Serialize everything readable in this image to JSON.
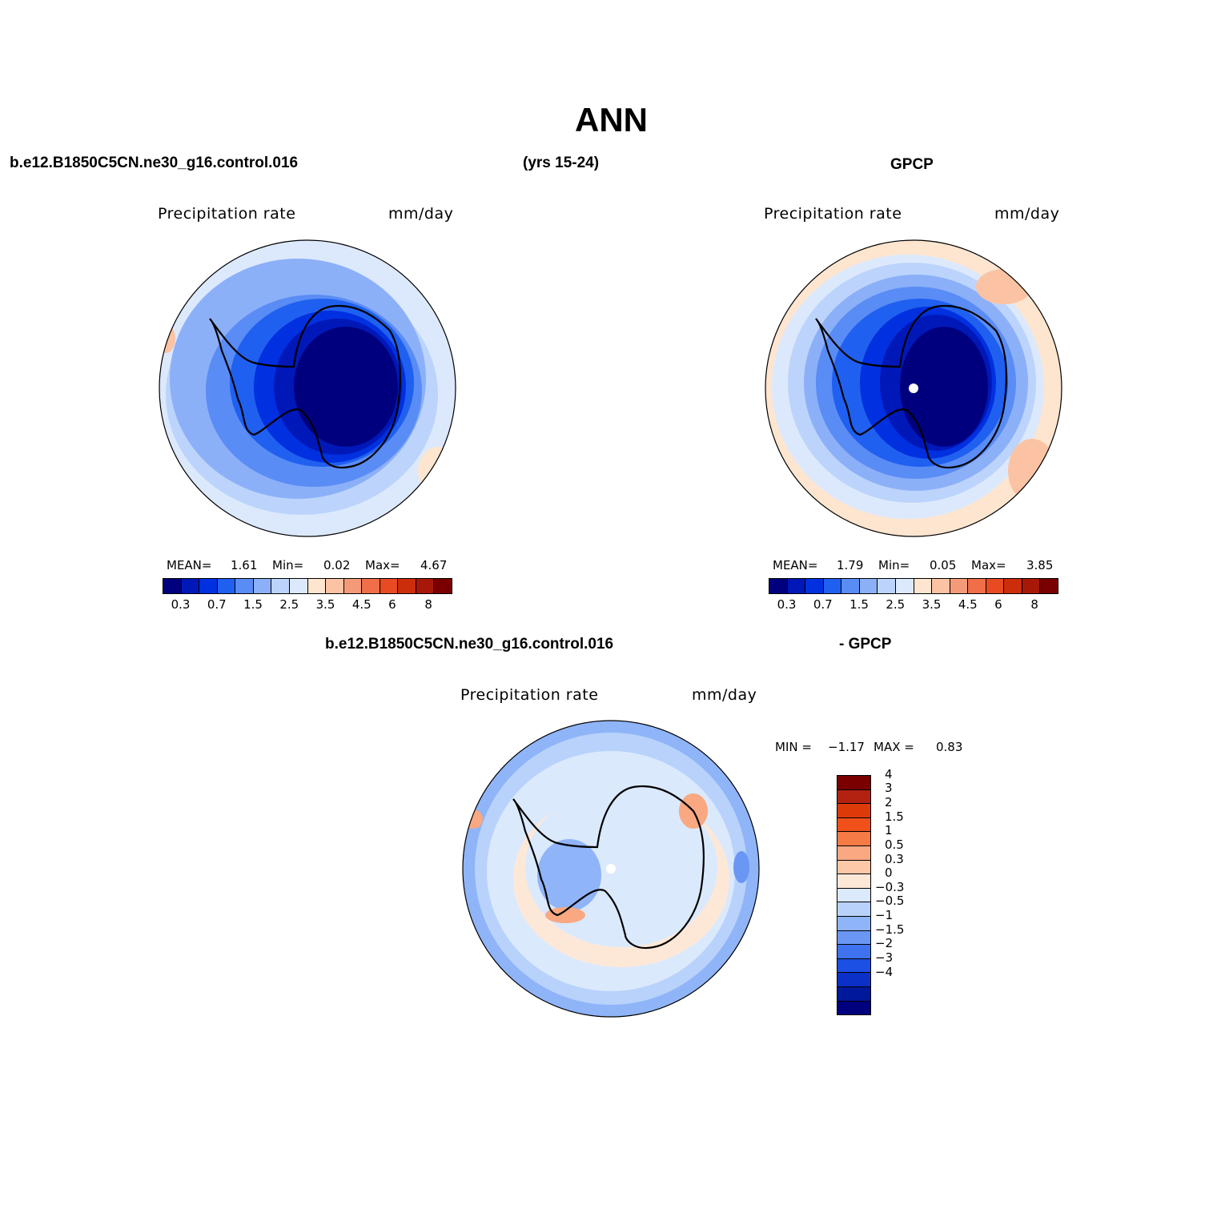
{
  "page_title": "ANN",
  "top_left": {
    "case": "b.e12.B1850C5CN.ne30_g16.control.016",
    "years": "(yrs 15-24)",
    "variable": "Precipitation rate",
    "units": "mm/day",
    "stats": {
      "mean_label": "MEAN=",
      "mean": "1.61",
      "min_label": "Min=",
      "min": "0.02",
      "max_label": "Max=",
      "max": "4.67"
    }
  },
  "top_right": {
    "case": "GPCP",
    "variable": "Precipitation rate",
    "units": "mm/day",
    "stats": {
      "mean_label": "MEAN=",
      "mean": "1.79",
      "min_label": "Min=",
      "min": "0.05",
      "max_label": "Max=",
      "max": "3.85"
    }
  },
  "bottom": {
    "case": "b.e12.B1850C5CN.ne30_g16.control.016",
    "minus_label": "- GPCP",
    "variable": "Precipitation rate",
    "units": "mm/day",
    "stats": {
      "min_label": "MIN =",
      "min": "−1.17",
      "max_label": "MAX =",
      "max": "0.83"
    }
  },
  "abs_colorbar": {
    "colors": [
      "#00007f",
      "#0018b8",
      "#0030e0",
      "#2060f0",
      "#5a8cf5",
      "#8cb0f8",
      "#bcd4fb",
      "#dce9fd",
      "#fde5d0",
      "#fbc3a3",
      "#f59a78",
      "#f06e48",
      "#e84a22",
      "#cc2e0c",
      "#a81808",
      "#7a0000"
    ],
    "tick_labels": [
      "0.3",
      "0.7",
      "1.5",
      "2.5",
      "3.5",
      "4.5",
      "6",
      "8"
    ]
  },
  "diff_colorbar": {
    "colors": [
      "#7a0000",
      "#b32210",
      "#dd3a0a",
      "#f0501a",
      "#f57a45",
      "#f9a882",
      "#fcc8a8",
      "#fde8d8",
      "#dbe9fd",
      "#b8d2fb",
      "#8fb4f8",
      "#6a96f4",
      "#3f72ee",
      "#1c4fe4",
      "#0a30c8",
      "#00189a",
      "#00007f"
    ],
    "tick_labels": [
      "4",
      "3",
      "2",
      "1.5",
      "1",
      "0.5",
      "0.3",
      "0",
      "−0.3",
      "−0.5",
      "−1",
      "−1.5",
      "−2",
      "−3",
      "−4"
    ]
  },
  "chart_data": [
    {
      "type": "heatmap",
      "title": "b.e12.B1850C5CN.ne30_g16.control.016 (yrs 15-24)",
      "variable": "Precipitation rate",
      "units": "mm/day",
      "projection": "south polar stereographic",
      "mean": 1.61,
      "min": 0.02,
      "max": 4.67,
      "levels": [
        0.2,
        0.3,
        0.5,
        0.7,
        1,
        1.5,
        2,
        2.5,
        3,
        3.5,
        4,
        4.5,
        5,
        6,
        7,
        8
      ]
    },
    {
      "type": "heatmap",
      "title": "GPCP",
      "variable": "Precipitation rate",
      "units": "mm/day",
      "projection": "south polar stereographic",
      "mean": 1.79,
      "min": 0.05,
      "max": 3.85,
      "levels": [
        0.2,
        0.3,
        0.5,
        0.7,
        1,
        1.5,
        2,
        2.5,
        3,
        3.5,
        4,
        4.5,
        5,
        6,
        7,
        8
      ]
    },
    {
      "type": "heatmap",
      "title": "b.e12.B1850C5CN.ne30_g16.control.016 - GPCP",
      "variable": "Precipitation rate",
      "units": "mm/day",
      "projection": "south polar stereographic",
      "min": -1.17,
      "max": 0.83,
      "levels": [
        4,
        3,
        2,
        1.5,
        1,
        0.5,
        0.3,
        0,
        -0.3,
        -0.5,
        -1,
        -1.5,
        -2,
        -3,
        -4
      ]
    }
  ]
}
